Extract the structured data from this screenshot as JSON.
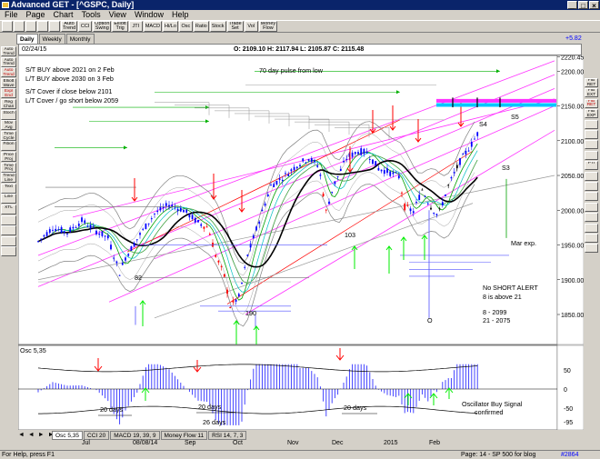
{
  "window": {
    "title": "Advanced GET - [^GSPC, Daily]",
    "buttons": [
      "_",
      "□",
      "×"
    ]
  },
  "menu": [
    "File",
    "Page",
    "Chart",
    "Tools",
    "View",
    "Window",
    "Help"
  ],
  "toolbar": [
    "",
    "",
    "",
    "",
    "",
    "Auto\nTrend",
    "CCI",
    "Option\nSwing",
    "Elliott\nTrig",
    "JTI",
    "MACD",
    "Hi/Lo",
    "Osc",
    "Ratio",
    "Stock",
    "Trade\nSet",
    "Vol",
    "Money\nFlow"
  ],
  "chart_tabs": [
    "Daily",
    "Weekly",
    "Monthly"
  ],
  "left_tools": [
    {
      "label": "Auto\nTrend",
      "red": false
    },
    {
      "label": "Auto\nTrend",
      "red": false
    },
    {
      "label": "Auto\nTrend",
      "red": true
    },
    {
      "label": "Elliott\nWave",
      "red": false
    },
    {
      "label": "Expl\nEnd",
      "red": true
    },
    {
      "label": "Reg\nChan",
      "red": false
    },
    {
      "label": "Stoch",
      "red": false
    },
    {
      "label": "Mov\nAvg",
      "red": false
    },
    {
      "label": "Time\nCycle",
      "red": false
    },
    {
      "label": "Fibon",
      "red": false
    },
    {
      "label": "Price\nProj",
      "red": false
    },
    {
      "label": "Time\nProj",
      "red": false
    },
    {
      "label": "Trend\nLine",
      "red": false
    },
    {
      "label": "Text",
      "red": false
    },
    {
      "label": "Line",
      "red": false
    },
    {
      "label": "XTL",
      "red": false
    },
    {
      "label": "",
      "red": false
    },
    {
      "label": "",
      "red": false
    },
    {
      "label": "",
      "red": false
    },
    {
      "label": "",
      "red": false
    }
  ],
  "right_tools": [
    {
      "label": "FIB\nRET",
      "red": false
    },
    {
      "label": "FIB\nEXT",
      "red": false
    },
    {
      "label": "FIB\nRET",
      "red": true
    },
    {
      "label": "FIB\nEXP",
      "red": false
    },
    {
      "label": "",
      "red": false
    },
    {
      "label": "",
      "red": false
    },
    {
      "label": "",
      "red": false
    },
    {
      "label": "",
      "red": false
    },
    {
      "label": "PTI",
      "red": false
    },
    {
      "label": "",
      "red": false
    },
    {
      "label": "",
      "red": false
    },
    {
      "label": "",
      "red": false
    },
    {
      "label": "",
      "red": false
    },
    {
      "label": "",
      "red": false
    },
    {
      "label": "",
      "red": false
    },
    {
      "label": "",
      "red": false
    },
    {
      "label": "",
      "red": false
    }
  ],
  "header": {
    "date": "02/24/15",
    "ohlc": "O: 2109.10  H: 2117.94  L: 2105.87  C: 2115.48",
    "change": "+5.82"
  },
  "price_axis": [
    "2220.45",
    "2200.00",
    "2150.00",
    "2100.00",
    "2050.00",
    "2000.00",
    "1950.00",
    "1900.00",
    "1850.00"
  ],
  "annotations": {
    "buy1": "S/T BUY above 2021 on 2 Feb",
    "buy2": "L/T BUY above 2030 on 3 Feb",
    "cover1": "S/T Cover if close below 2101",
    "cover2": "L/T Cover / go short below 2059",
    "pulse": "70 day pulse from low",
    "s4": "S4",
    "s5": "S5",
    "s3": "S3",
    "mar": "Mar exp.",
    "noshort": "No SHORT ALERT",
    "above": "8 is above 21",
    "ma8": "8   - 2099",
    "ma21": "21 - 2075",
    "w82": "82",
    "w190": "190",
    "w103": "103",
    "wO": "O"
  },
  "osc": {
    "title": "Osc 5,35",
    "axis": [
      "50",
      "0",
      "-50",
      "-95"
    ],
    "labels": [
      "20 days",
      "20 days",
      "26 days",
      "20 days"
    ],
    "signal1": "Oscillator Buy Signal",
    "signal2": "confirmed"
  },
  "bottom_tabs": [
    "Osc 5,35",
    "CCI 20",
    "MACD 19, 39, 9",
    "Money Flow 11",
    "RSI 14, 7, 3"
  ],
  "nav": "◄ ◄ ► ►",
  "x_axis": [
    "Jul",
    "08/08/14",
    "Sep",
    "Oct",
    "Nov",
    "Dec",
    "2015",
    "Feb"
  ],
  "status": {
    "help": "For Help, press F1",
    "page": "Page: 14 - SP 500 for blog",
    "count": "#2864"
  },
  "colors": {
    "up": "#0000ff",
    "down": "#ff0000",
    "doji": "#000000",
    "ma_black": "#000000",
    "ma_green": "#00a000",
    "pink": "#ff33ff",
    "arrow_green": "#00ee00",
    "arrow_red": "#ff0000",
    "projection": "#00c8ff"
  }
}
